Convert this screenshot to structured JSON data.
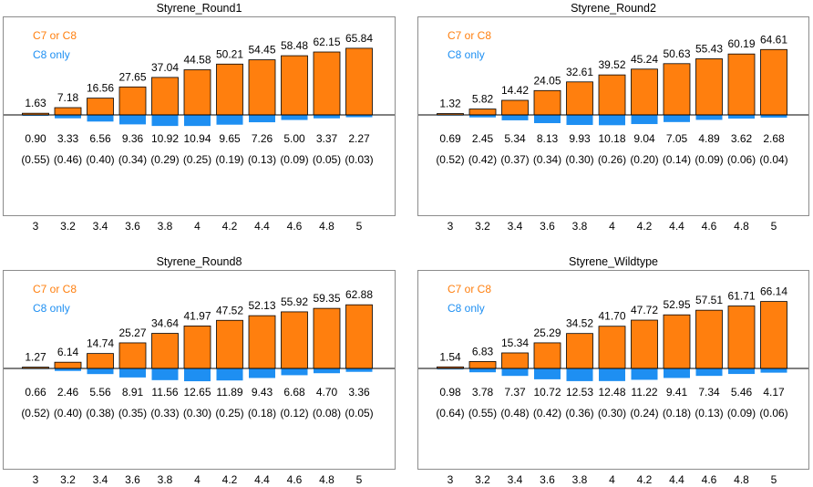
{
  "colors": {
    "c7_or_c8": "#ff7f0e",
    "c8_only": "#1e8ff2",
    "axis": "#000000",
    "frame": "#8c8c8c"
  },
  "chart_data": [
    {
      "type": "bar",
      "title": "Styrene_Round1",
      "legend": [
        "C7 or C8",
        "C8 only"
      ],
      "categories": [
        "3",
        "3.2",
        "3.4",
        "3.6",
        "3.8",
        "4",
        "4.2",
        "4.4",
        "4.6",
        "4.8",
        "5"
      ],
      "series": [
        {
          "name": "C7 or C8",
          "values": [
            1.63,
            7.18,
            16.56,
            27.65,
            37.04,
            44.58,
            50.21,
            54.45,
            58.48,
            62.15,
            65.84
          ],
          "labels": [
            "1.63",
            "7.18",
            "16.56",
            "27.65",
            "37.04",
            "44.58",
            "50.21",
            "54.45",
            "58.48",
            "62.15",
            "65.84"
          ]
        },
        {
          "name": "C8 only",
          "values": [
            0.9,
            3.33,
            6.56,
            9.36,
            10.92,
            10.94,
            9.65,
            7.26,
            5.0,
            3.37,
            2.27
          ],
          "labels": [
            "0.90",
            "3.33",
            "6.56",
            "9.36",
            "10.92",
            "10.94",
            "9.65",
            "7.26",
            "5.00",
            "3.37",
            "2.27"
          ]
        }
      ],
      "ratio_labels": [
        "(0.55)",
        "(0.46)",
        "(0.40)",
        "(0.34)",
        "(0.29)",
        "(0.25)",
        "(0.19)",
        "(0.13)",
        "(0.09)",
        "(0.05)",
        "(0.03)"
      ]
    },
    {
      "type": "bar",
      "title": "Styrene_Round2",
      "legend": [
        "C7 or C8",
        "C8 only"
      ],
      "categories": [
        "3",
        "3.2",
        "3.4",
        "3.6",
        "3.8",
        "4",
        "4.2",
        "4.4",
        "4.6",
        "4.8",
        "5"
      ],
      "series": [
        {
          "name": "C7 or C8",
          "values": [
            1.32,
            5.82,
            14.42,
            24.05,
            32.61,
            39.52,
            45.24,
            50.63,
            55.43,
            60.19,
            64.61
          ],
          "labels": [
            "1.32",
            "5.82",
            "14.42",
            "24.05",
            "32.61",
            "39.52",
            "45.24",
            "50.63",
            "55.43",
            "60.19",
            "64.61"
          ]
        },
        {
          "name": "C8 only",
          "values": [
            0.69,
            2.45,
            5.34,
            8.13,
            9.93,
            10.18,
            9.04,
            7.05,
            4.89,
            3.62,
            2.68
          ],
          "labels": [
            "0.69",
            "2.45",
            "5.34",
            "8.13",
            "9.93",
            "10.18",
            "9.04",
            "7.05",
            "4.89",
            "3.62",
            "2.68"
          ]
        }
      ],
      "ratio_labels": [
        "(0.52)",
        "(0.42)",
        "(0.37)",
        "(0.34)",
        "(0.30)",
        "(0.26)",
        "(0.20)",
        "(0.14)",
        "(0.09)",
        "(0.06)",
        "(0.04)"
      ]
    },
    {
      "type": "bar",
      "title": "Styrene_Round8",
      "legend": [
        "C7 or C8",
        "C8 only"
      ],
      "categories": [
        "3",
        "3.2",
        "3.4",
        "3.6",
        "3.8",
        "4",
        "4.2",
        "4.4",
        "4.6",
        "4.8",
        "5"
      ],
      "series": [
        {
          "name": "C7 or C8",
          "values": [
            1.27,
            6.14,
            14.74,
            25.27,
            34.64,
            41.97,
            47.52,
            52.13,
            55.92,
            59.35,
            62.88
          ],
          "labels": [
            "1.27",
            "6.14",
            "14.74",
            "25.27",
            "34.64",
            "41.97",
            "47.52",
            "52.13",
            "55.92",
            "59.35",
            "62.88"
          ]
        },
        {
          "name": "C8 only",
          "values": [
            0.66,
            2.46,
            5.56,
            8.91,
            11.56,
            12.65,
            11.89,
            9.43,
            6.68,
            4.7,
            3.36
          ],
          "labels": [
            "0.66",
            "2.46",
            "5.56",
            "8.91",
            "11.56",
            "12.65",
            "11.89",
            "9.43",
            "6.68",
            "4.70",
            "3.36"
          ]
        }
      ],
      "ratio_labels": [
        "(0.52)",
        "(0.40)",
        "(0.38)",
        "(0.35)",
        "(0.33)",
        "(0.30)",
        "(0.25)",
        "(0.18)",
        "(0.12)",
        "(0.08)",
        "(0.05)"
      ]
    },
    {
      "type": "bar",
      "title": "Styrene_Wildtype",
      "legend": [
        "C7 or C8",
        "C8 only"
      ],
      "categories": [
        "3",
        "3.2",
        "3.4",
        "3.6",
        "3.8",
        "4",
        "4.2",
        "4.4",
        "4.6",
        "4.8",
        "5"
      ],
      "series": [
        {
          "name": "C7 or C8",
          "values": [
            1.54,
            6.83,
            15.34,
            25.29,
            34.52,
            41.7,
            47.72,
            52.95,
            57.51,
            61.71,
            66.14
          ],
          "labels": [
            "1.54",
            "6.83",
            "15.34",
            "25.29",
            "34.52",
            "41.70",
            "47.72",
            "52.95",
            "57.51",
            "61.71",
            "66.14"
          ]
        },
        {
          "name": "C8 only",
          "values": [
            0.98,
            3.78,
            7.37,
            10.72,
            12.53,
            12.48,
            11.22,
            9.41,
            7.34,
            5.46,
            4.17
          ],
          "labels": [
            "0.98",
            "3.78",
            "7.37",
            "10.72",
            "12.53",
            "12.48",
            "11.22",
            "9.41",
            "7.34",
            "5.46",
            "4.17"
          ]
        }
      ],
      "ratio_labels": [
        "(0.64)",
        "(0.55)",
        "(0.48)",
        "(0.42)",
        "(0.36)",
        "(0.30)",
        "(0.24)",
        "(0.18)",
        "(0.13)",
        "(0.09)",
        "(0.06)"
      ]
    }
  ]
}
